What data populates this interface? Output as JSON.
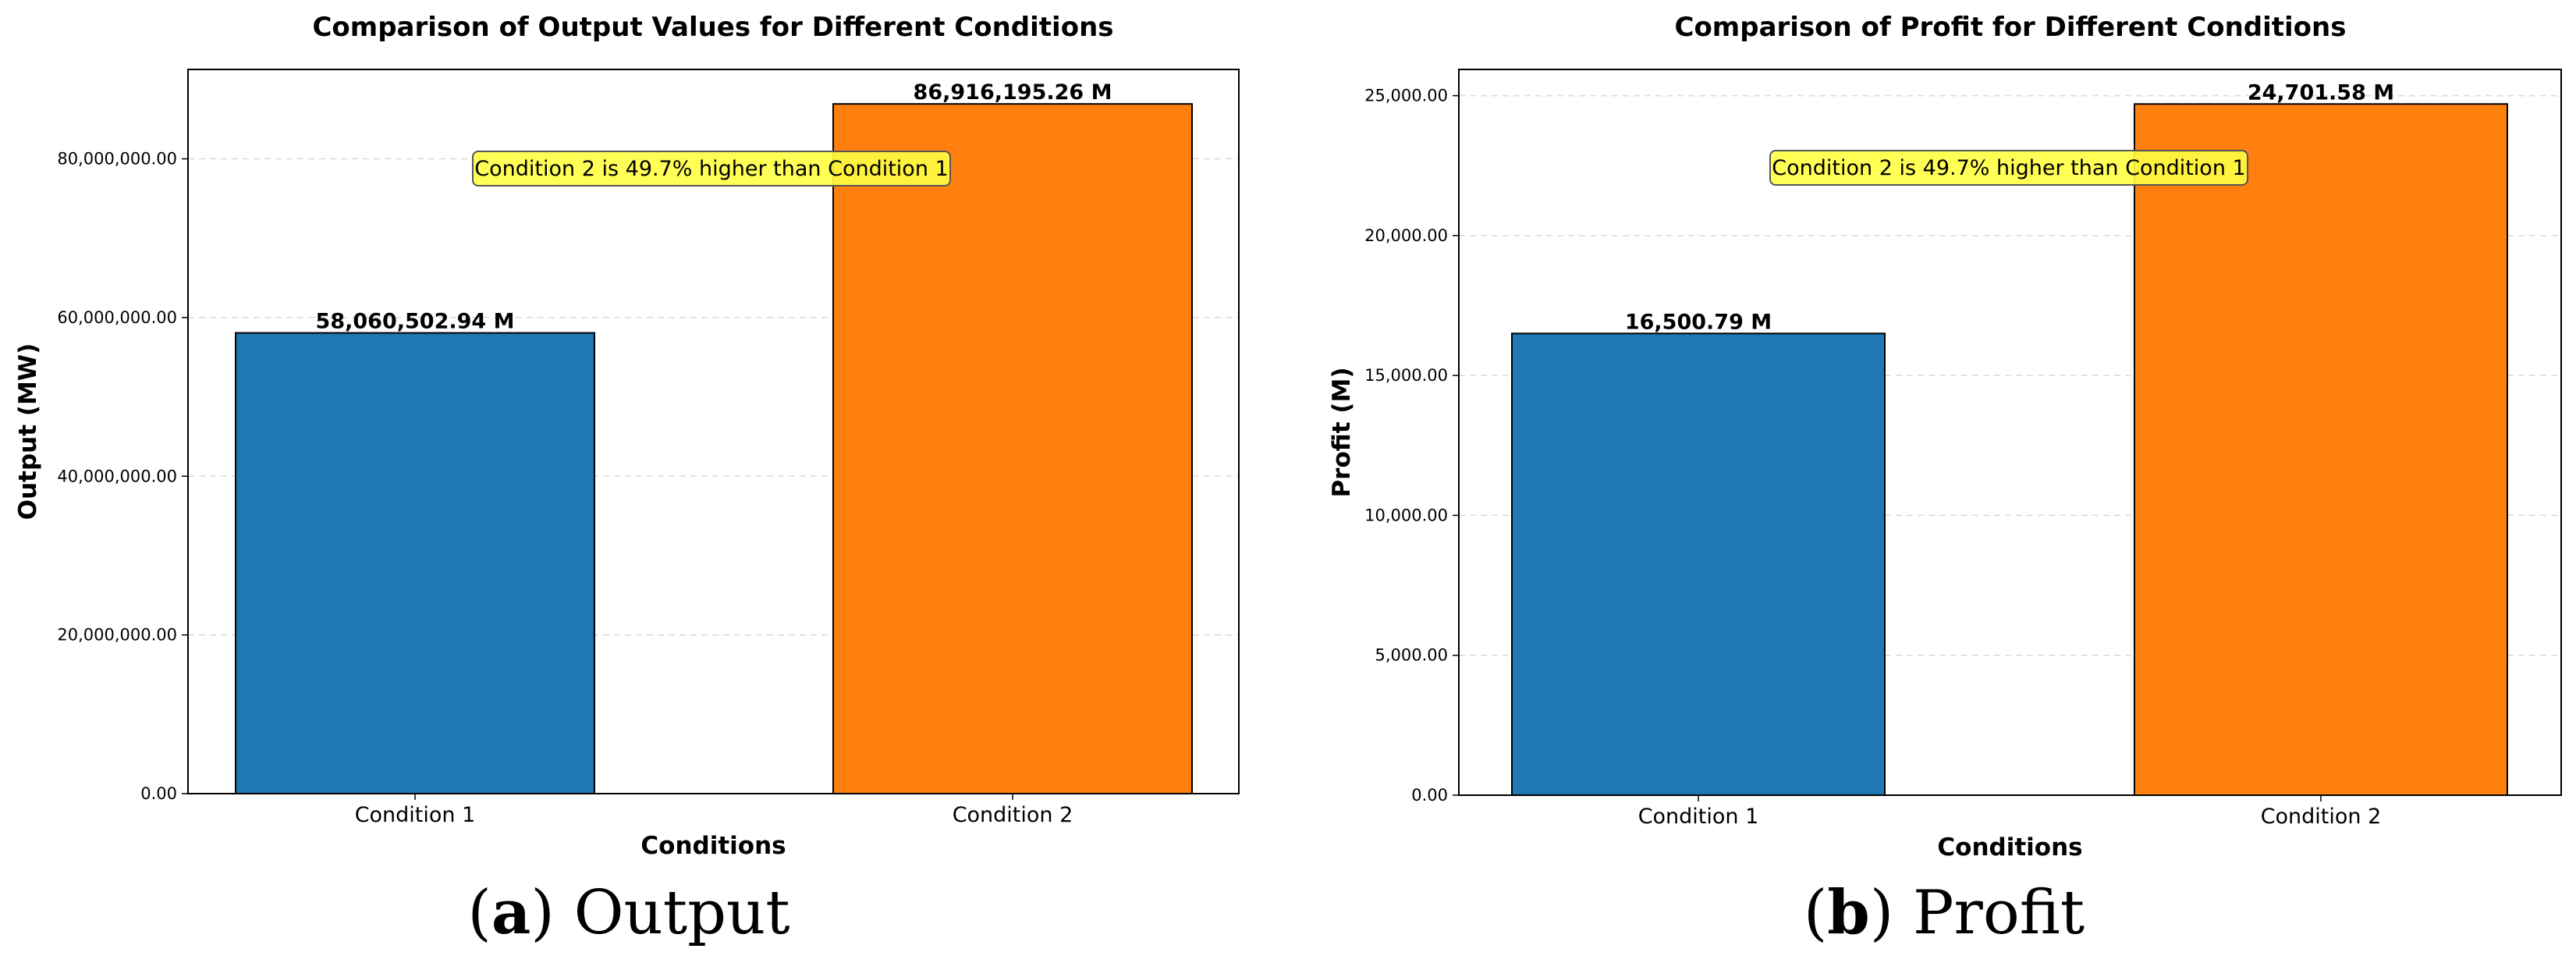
{
  "chart_data": [
    {
      "type": "bar",
      "title": "Comparison of Output Values for Different Conditions",
      "xlabel": "Conditions",
      "ylabel": "Output (MW)",
      "categories": [
        "Condition 1",
        "Condition 2"
      ],
      "values": [
        58060502.94,
        86916195.26
      ],
      "data_labels": [
        "58,060,502.94 M",
        "86,916,195.26 M"
      ],
      "colors": [
        "#1f77b4",
        "#ff7f0e"
      ],
      "ylim": [
        0,
        91262005.02
      ],
      "yticks": [
        0,
        20000000,
        40000000,
        60000000,
        80000000
      ],
      "ytick_labels": [
        "0.00",
        "20,000,000.00",
        "40,000,000.00",
        "60,000,000.00",
        "80,000,000.00"
      ],
      "grid": true,
      "annotation": "Condition 2 is 49.7% higher than Condition 1",
      "caption_letter": "(a)",
      "caption_text": "Output"
    },
    {
      "type": "bar",
      "title": "Comparison of Profit for Different Conditions",
      "xlabel": "Conditions",
      "ylabel": "Profit (M)",
      "categories": [
        "Condition 1",
        "Condition 2"
      ],
      "values": [
        16500.79,
        24701.58
      ],
      "data_labels": [
        "16,500.79 M",
        "24,701.58 M"
      ],
      "colors": [
        "#1f77b4",
        "#ff7f0e"
      ],
      "ylim": [
        0,
        25936.66
      ],
      "yticks": [
        0,
        5000,
        10000,
        15000,
        20000,
        25000
      ],
      "ytick_labels": [
        "0.00",
        "5,000.00",
        "10,000.00",
        "15,000.00",
        "20,000.00",
        "25,000.00"
      ],
      "grid": true,
      "annotation": "Condition 2 is 49.7% higher than Condition 1",
      "caption_letter": "(b)",
      "caption_text": "Profit"
    }
  ]
}
